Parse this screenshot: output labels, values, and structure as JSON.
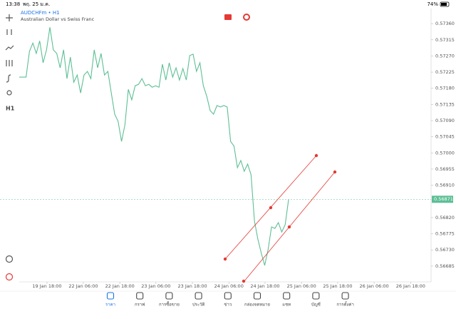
{
  "status_bar": {
    "time": "13:38",
    "date": "พฤ. 25 ม.ค.",
    "battery": "74%"
  },
  "symbol": {
    "name": "AUDCHFm • H1",
    "description": "Australian Dollar vs Swiss Franc"
  },
  "toolbar": {
    "timeframe": "H1"
  },
  "chart_data": {
    "type": "line",
    "color": "#5dbf95",
    "values": [
      0.57211,
      0.57211,
      0.57211,
      0.57283,
      0.57306,
      0.57277,
      0.57312,
      0.57251,
      0.57287,
      0.5735,
      0.57287,
      0.57277,
      0.57237,
      0.57287,
      0.57207,
      0.57267,
      0.57197,
      0.57217,
      0.57167,
      0.57217,
      0.57227,
      0.57207,
      0.57287,
      0.57237,
      0.57277,
      0.57217,
      0.57227,
      0.57167,
      0.57108,
      0.57088,
      0.57032,
      0.57078,
      0.57177,
      0.57148,
      0.57187,
      0.57191,
      0.57207,
      0.57187,
      0.57191,
      0.57183,
      0.57187,
      0.57183,
      0.57247,
      0.57203,
      0.57251,
      0.57211,
      0.57237,
      0.57203,
      0.57235,
      0.57203,
      0.57271,
      0.57275,
      0.57227,
      0.57251,
      0.57187,
      0.57158,
      0.57118,
      0.57108,
      0.57132,
      0.57128,
      0.57132,
      0.57128,
      0.57032,
      0.57019,
      0.56959,
      0.56979,
      0.56949,
      0.56969,
      0.56939,
      0.5681,
      0.5676,
      0.56721,
      0.56687,
      0.56731,
      0.56794,
      0.5679,
      0.56806,
      0.5678,
      0.568,
      0.5687
    ],
    "xlim": [
      0,
      120.8
    ],
    "xticks": [
      {
        "value": 8.15,
        "label": "19 Jan 18:00"
      },
      {
        "value": 18.8,
        "label": "22 Jan 06:00"
      },
      {
        "value": 29.5,
        "label": "22 Jan 18:00"
      },
      {
        "value": 40.1,
        "label": "23 Jan 06:00"
      },
      {
        "value": 50.8,
        "label": "23 Jan 18:00"
      },
      {
        "value": 61.5,
        "label": "24 Jan 06:00"
      },
      {
        "value": 72.1,
        "label": "24 Jan 18:00"
      },
      {
        "value": 82.8,
        "label": "25 Jan 06:00"
      },
      {
        "value": 93.4,
        "label": "25 Jan 18:00"
      },
      {
        "value": 104.1,
        "label": "26 Jan 06:00"
      },
      {
        "value": 114.8,
        "label": "26 Jan 18:00"
      }
    ],
    "ylim": [
      0.56641,
      0.57396
    ],
    "yticks": [
      {
        "value": 0.5736,
        "label": "0.57360"
      },
      0.57315,
      {
        "value": 0.5727,
        "label": "0.57270"
      },
      0.57225,
      {
        "value": 0.5718,
        "label": "0.57180"
      },
      0.57135,
      {
        "value": 0.5709,
        "label": "0.57090"
      },
      0.57045,
      {
        "value": 0.57,
        "label": "0.57000"
      },
      0.56955,
      {
        "value": 0.5691,
        "label": "0.56910"
      },
      {
        "value": 0.5682,
        "label": "0.56820"
      },
      0.56775,
      {
        "value": 0.5673,
        "label": "0.56730"
      },
      0.56685
    ],
    "current_price": 0.56871
  },
  "nav": [
    "ราคา",
    "กราฟ",
    "การซื้อขาย",
    "ประวัติ",
    "ข่าว",
    "กล่องจดหมาย",
    "แชท",
    "บัญชี",
    "การตั้งค่า"
  ]
}
